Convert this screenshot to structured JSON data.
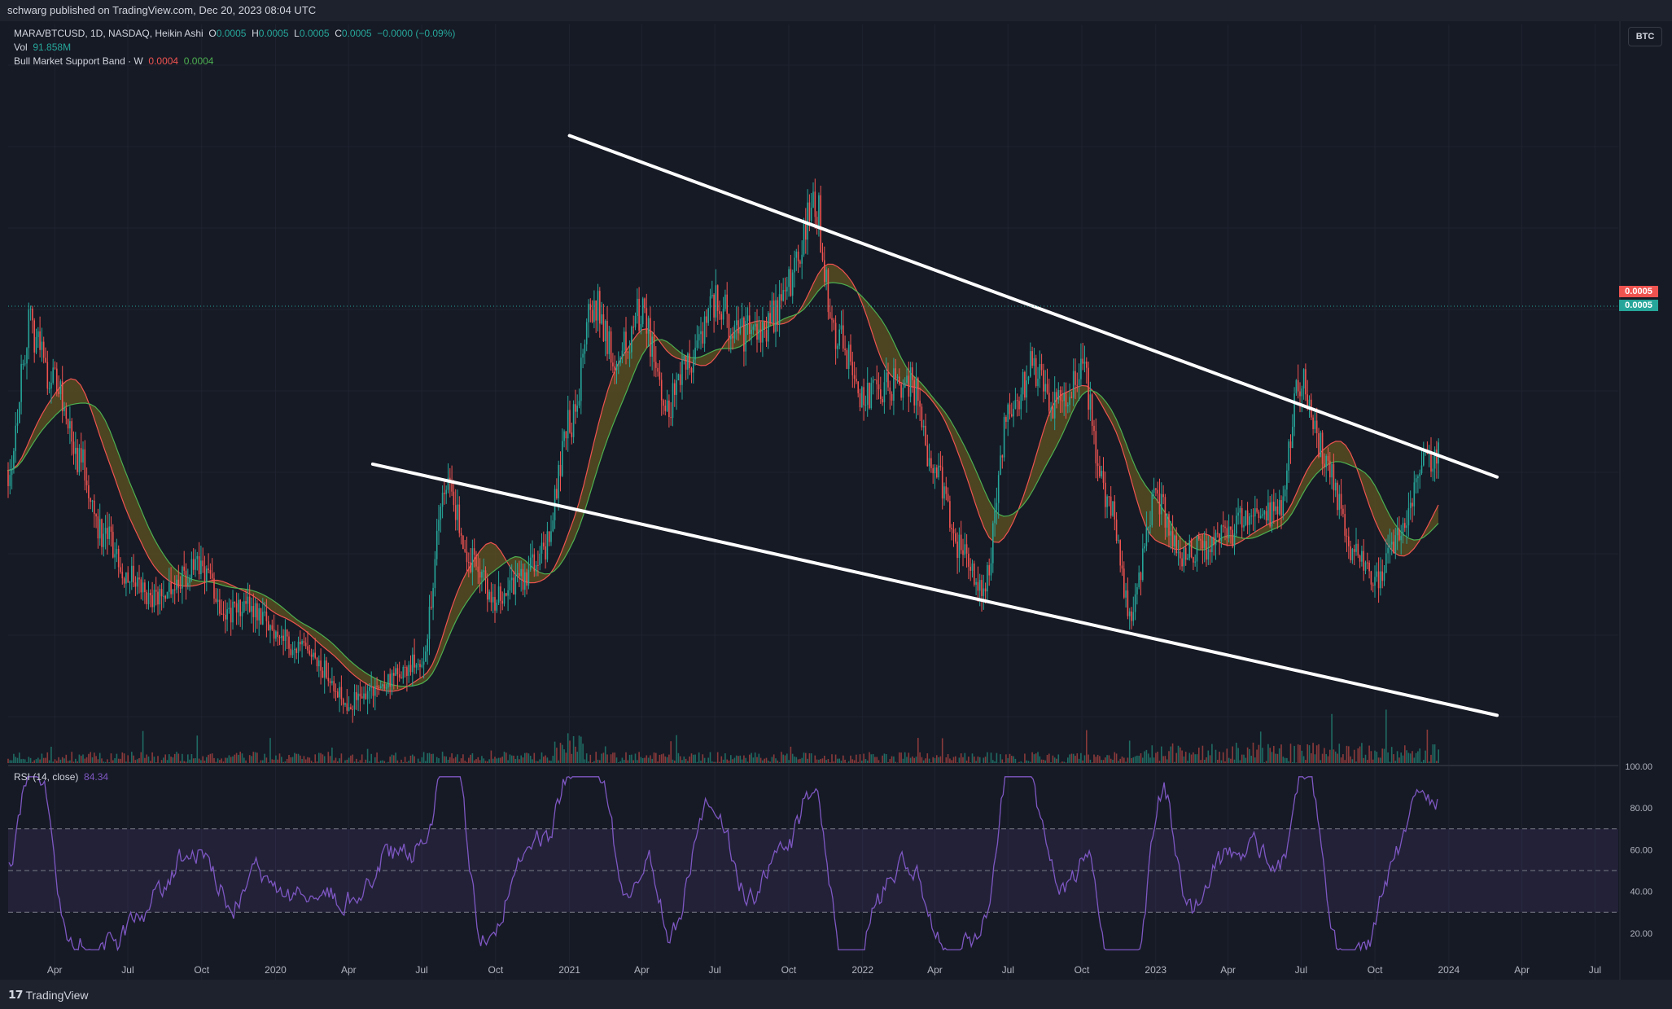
{
  "header": {
    "published": "schwarg published on TradingView.com, Dec 20, 2023 08:04 UTC"
  },
  "legend": {
    "symbol": "MARA/BTCUSD, 1D, NASDAQ, Heikin Ashi",
    "o_label": "O",
    "o_value": "0.0005",
    "h_label": "H",
    "h_value": "0.0005",
    "l_label": "L",
    "l_value": "0.0005",
    "c_label": "C",
    "c_value": "0.0005",
    "change": "−0.0000 (−0.09%)",
    "vol_label": "Vol",
    "vol_value": "91.858M",
    "band_label": "Bull Market Support Band · W",
    "band_value_1": "0.0004",
    "band_value_2": "0.0004",
    "rsi_label": "RSI (14, close)",
    "rsi_value": "84.34"
  },
  "currency_badge": "BTC",
  "price_tags": {
    "upper": "0.0005",
    "lower": "0.0005"
  },
  "footer": {
    "brand": "TradingView"
  },
  "colors": {
    "background": "#161a25",
    "up": "#26a69a",
    "down": "#ef5350",
    "rsi": "#7e57c2",
    "trendline": "#ffffff",
    "band_fill": "#6b5a1e"
  },
  "chart_data": [
    {
      "type": "candlestick",
      "title": "MARA/BTCUSD, 1D, NASDAQ, Heikin Ashi",
      "x_ticks": [
        "Apr",
        "Jul",
        "Oct",
        "2020",
        "Apr",
        "Jul",
        "Oct",
        "2021",
        "Apr",
        "Jul",
        "Oct",
        "2022",
        "Apr",
        "Jul",
        "Oct",
        "2023",
        "Apr",
        "Jul",
        "Oct",
        "2024",
        "Apr",
        "Jul"
      ],
      "series": [
        {
          "name": "Bull Market Support Band · W",
          "values": [
            0.0004,
            0.0004
          ]
        }
      ],
      "close": [
        [
          "2019-02-01",
          0.00048
        ],
        [
          "2019-03-01",
          0.0007
        ],
        [
          "2019-04-01",
          0.00062
        ],
        [
          "2019-05-01",
          0.0005
        ],
        [
          "2019-06-01",
          0.00038
        ],
        [
          "2019-07-01",
          0.00032
        ],
        [
          "2019-08-01",
          0.00028
        ],
        [
          "2019-09-01",
          0.00031
        ],
        [
          "2019-10-01",
          0.00033
        ],
        [
          "2019-11-01",
          0.00026
        ],
        [
          "2019-12-01",
          0.00027
        ],
        [
          "2020-01-01",
          0.00023
        ],
        [
          "2020-02-01",
          0.0002
        ],
        [
          "2020-03-01",
          0.00017
        ],
        [
          "2020-04-01",
          0.00012
        ],
        [
          "2020-05-01",
          0.00014
        ],
        [
          "2020-06-01",
          0.00016
        ],
        [
          "2020-07-01",
          0.00019
        ],
        [
          "2020-08-01",
          0.00046
        ],
        [
          "2020-09-01",
          0.00034
        ],
        [
          "2020-10-01",
          0.00028
        ],
        [
          "2020-11-01",
          0.00031
        ],
        [
          "2020-12-01",
          0.00036
        ],
        [
          "2021-01-01",
          0.00055
        ],
        [
          "2021-02-01",
          0.00074
        ],
        [
          "2021-03-01",
          0.00066
        ],
        [
          "2021-04-01",
          0.00072
        ],
        [
          "2021-05-01",
          0.00058
        ],
        [
          "2021-06-01",
          0.00066
        ],
        [
          "2021-07-01",
          0.00075
        ],
        [
          "2021-08-01",
          0.00069
        ],
        [
          "2021-09-01",
          0.0007
        ],
        [
          "2021-10-01",
          0.00076
        ],
        [
          "2021-11-01",
          0.0009
        ],
        [
          "2021-12-01",
          0.00068
        ],
        [
          "2022-01-01",
          0.0006
        ],
        [
          "2022-02-01",
          0.00061
        ],
        [
          "2022-03-01",
          0.00062
        ],
        [
          "2022-04-01",
          0.00048
        ],
        [
          "2022-05-01",
          0.00036
        ],
        [
          "2022-06-01",
          0.0003
        ],
        [
          "2022-07-01",
          0.00056
        ],
        [
          "2022-08-01",
          0.00064
        ],
        [
          "2022-09-01",
          0.00058
        ],
        [
          "2022-10-01",
          0.00063
        ],
        [
          "2022-11-01",
          0.00044
        ],
        [
          "2022-12-01",
          0.00026
        ],
        [
          "2023-01-01",
          0.00044
        ],
        [
          "2023-02-01",
          0.00035
        ],
        [
          "2023-03-01",
          0.00036
        ],
        [
          "2023-04-01",
          0.00038
        ],
        [
          "2023-05-01",
          0.00042
        ],
        [
          "2023-06-01",
          0.00041
        ],
        [
          "2023-07-01",
          0.00062
        ],
        [
          "2023-08-01",
          0.0005
        ],
        [
          "2023-09-01",
          0.00036
        ],
        [
          "2023-10-01",
          0.00031
        ],
        [
          "2023-11-01",
          0.00038
        ],
        [
          "2023-12-01",
          0.0005
        ]
      ],
      "trendlines": [
        {
          "name": "upper channel",
          "from": [
            "2021-01-01",
            0.001
          ],
          "to": [
            "2024-03-01",
            0.00047
          ]
        },
        {
          "name": "lower channel",
          "from": [
            "2020-05-01",
            0.00049
          ],
          "to": [
            "2024-03-01",
            0.0001
          ]
        }
      ]
    },
    {
      "type": "line",
      "title": "RSI (14, close)",
      "y_ticks": [
        "100.00",
        "80.00",
        "60.00",
        "40.00",
        "20.00"
      ],
      "ylim": [
        0,
        100
      ],
      "bands": [
        30,
        50,
        70
      ],
      "last": 84.34
    }
  ]
}
